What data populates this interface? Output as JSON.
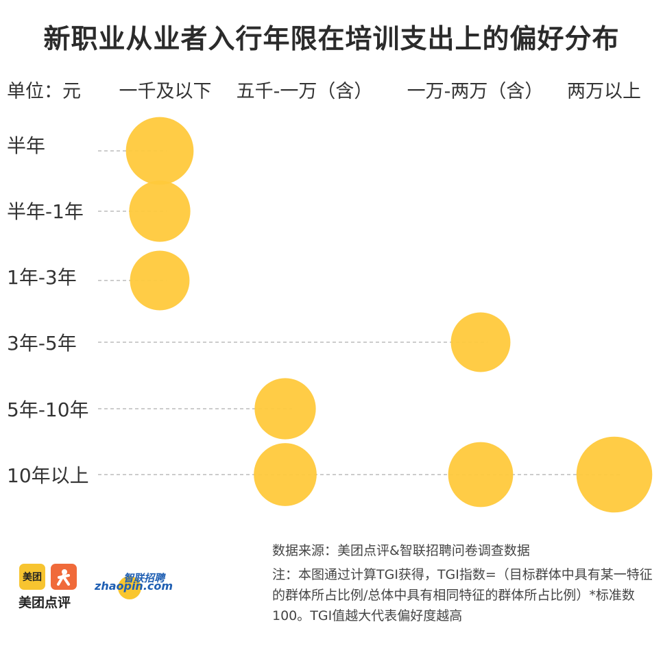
{
  "chart_data": {
    "type": "bubble",
    "title": "新职业从业者入行年限在培训支出上的偏好分布",
    "unit_label": "单位：元",
    "columns": [
      "一千及以下",
      "五千-一万（含）",
      "一万-两万（含）",
      "两万以上"
    ],
    "rows": [
      "半年",
      "半年-1年",
      "1年-3年",
      "3年-5年",
      "5年-10年",
      "10年以上"
    ],
    "bubble_color": "#FFC93C",
    "points": [
      {
        "row": "半年",
        "column": "一千及以下",
        "tgi": 125
      },
      {
        "row": "半年-1年",
        "column": "一千及以下",
        "tgi": 113
      },
      {
        "row": "1年-3年",
        "column": "一千及以下",
        "tgi": 110
      },
      {
        "row": "3年-5年",
        "column": "一万-两万（含）",
        "tgi": 110
      },
      {
        "row": "5年-10年",
        "column": "五千-一万（含）",
        "tgi": 113
      },
      {
        "row": "10年以上",
        "column": "五千-一万（含）",
        "tgi": 116
      },
      {
        "row": "10年以上",
        "column": "一万-两万（含）",
        "tgi": 120
      },
      {
        "row": "10年以上",
        "column": "两万以上",
        "tgi": 140
      }
    ]
  },
  "footer": {
    "source": "数据来源：美团点评&智联招聘问卷调查数据",
    "note": "注：本图通过计算TGI获得，TGI指数=（目标群体中具有某一特征的群体所占比例/总体中具有相同特征的群体所占比例）*标准数100。TGI值越大代表偏好度越高"
  },
  "logos": {
    "meituan_badge": "美团",
    "meituan_dianping_text": "美团点评",
    "zhaopin_cn": "智联招聘",
    "zhaopin_en": "zhaopin.com",
    "dianping_icon": "person-icon"
  }
}
